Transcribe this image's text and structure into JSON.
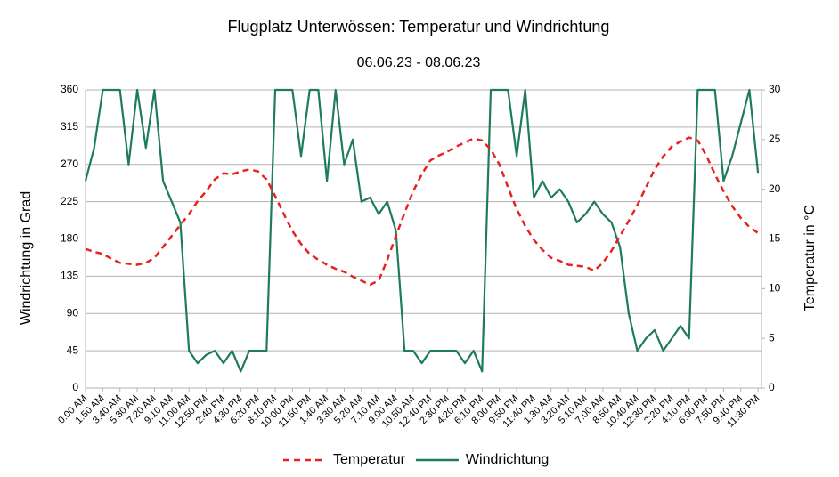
{
  "chart_data": {
    "type": "line",
    "title": "Flugplatz Unterwössen: Temperatur und Windrichtung",
    "subtitle": "06.06.23 - 08.06.23",
    "y_label": "Windrichtung in Grad",
    "y2_label": "Temperatur in °C",
    "categories": [
      "0:00 AM",
      null,
      "1:50 AM",
      null,
      "3:40 AM",
      null,
      "5:30 AM",
      null,
      "7:20 AM",
      null,
      "9:10 AM",
      null,
      "11:00 AM",
      null,
      "12:50 PM",
      null,
      "2:40 PM",
      null,
      "4:30 PM",
      null,
      "6:20 PM",
      null,
      "8:10 PM",
      null,
      "10:00 PM",
      null,
      "11:50 PM",
      null,
      "1:40 AM",
      null,
      "3:30 AM",
      null,
      "5:20 AM",
      null,
      "7:10 AM",
      null,
      "9:00 AM",
      null,
      "10:50 AM",
      null,
      "12:40 PM",
      null,
      "2:30 PM",
      null,
      "4:20 PM",
      null,
      "6:10 PM",
      null,
      "8:00 PM",
      null,
      "9:50 PM",
      null,
      "11:40 PM",
      null,
      "1:30 AM",
      null,
      "3:20 AM",
      null,
      "5:10 AM",
      null,
      "7:00 AM",
      null,
      "8:50 AM",
      null,
      "10:40 AM",
      null,
      "12:30 PM",
      null,
      "2:20 PM",
      null,
      "4:10 PM",
      null,
      "6:00 PM",
      null,
      "7:50 PM",
      null,
      "9:40 PM",
      null,
      "11:30 PM"
    ],
    "series": [
      {
        "name": "Temperatur",
        "color": "#e8231f",
        "dashed": true,
        "axis": "y2",
        "values": [
          14.0,
          13.7,
          13.5,
          13.0,
          12.6,
          12.5,
          12.4,
          12.6,
          13.1,
          14.2,
          15.3,
          16.4,
          17.5,
          18.8,
          19.8,
          21.0,
          21.6,
          21.5,
          21.8,
          22.0,
          21.8,
          21.0,
          19.3,
          17.5,
          15.8,
          14.5,
          13.5,
          12.9,
          12.4,
          12.0,
          11.7,
          11.2,
          10.8,
          10.4,
          10.8,
          12.9,
          15.3,
          17.6,
          19.8,
          21.5,
          22.9,
          23.4,
          23.8,
          24.3,
          24.7,
          25.1,
          24.9,
          24.0,
          22.5,
          20.2,
          18.0,
          16.3,
          14.9,
          13.9,
          13.1,
          12.8,
          12.4,
          12.3,
          12.2,
          11.8,
          12.6,
          13.8,
          15.3,
          16.8,
          18.4,
          20.2,
          22.0,
          23.3,
          24.3,
          24.8,
          25.2,
          24.9,
          23.4,
          21.5,
          19.8,
          18.3,
          17.1,
          16.2,
          15.6
        ]
      },
      {
        "name": "Windrichtung",
        "color": "#1e7c5a",
        "dashed": false,
        "axis": "y",
        "values": [
          250,
          290,
          360,
          360,
          360,
          270,
          360,
          290,
          360,
          250,
          225,
          200,
          45,
          30,
          40,
          45,
          30,
          45,
          20,
          45,
          45,
          45,
          360,
          360,
          360,
          280,
          360,
          360,
          250,
          360,
          270,
          300,
          225,
          230,
          210,
          225,
          190,
          45,
          45,
          30,
          45,
          45,
          45,
          45,
          30,
          45,
          20,
          360,
          360,
          360,
          280,
          360,
          230,
          250,
          230,
          240,
          225,
          200,
          210,
          225,
          210,
          200,
          170,
          90,
          45,
          60,
          70,
          45,
          60,
          75,
          60,
          360,
          360,
          360,
          250,
          280,
          320,
          360,
          260
        ]
      }
    ],
    "ylim": [
      0,
      360
    ],
    "yticks": [
      0,
      45,
      90,
      135,
      180,
      225,
      270,
      315,
      360
    ],
    "y2lim": [
      0,
      30
    ],
    "y2ticks": [
      0,
      5,
      10,
      15,
      20,
      25,
      30
    ],
    "grid": true,
    "legend": "bottom"
  }
}
